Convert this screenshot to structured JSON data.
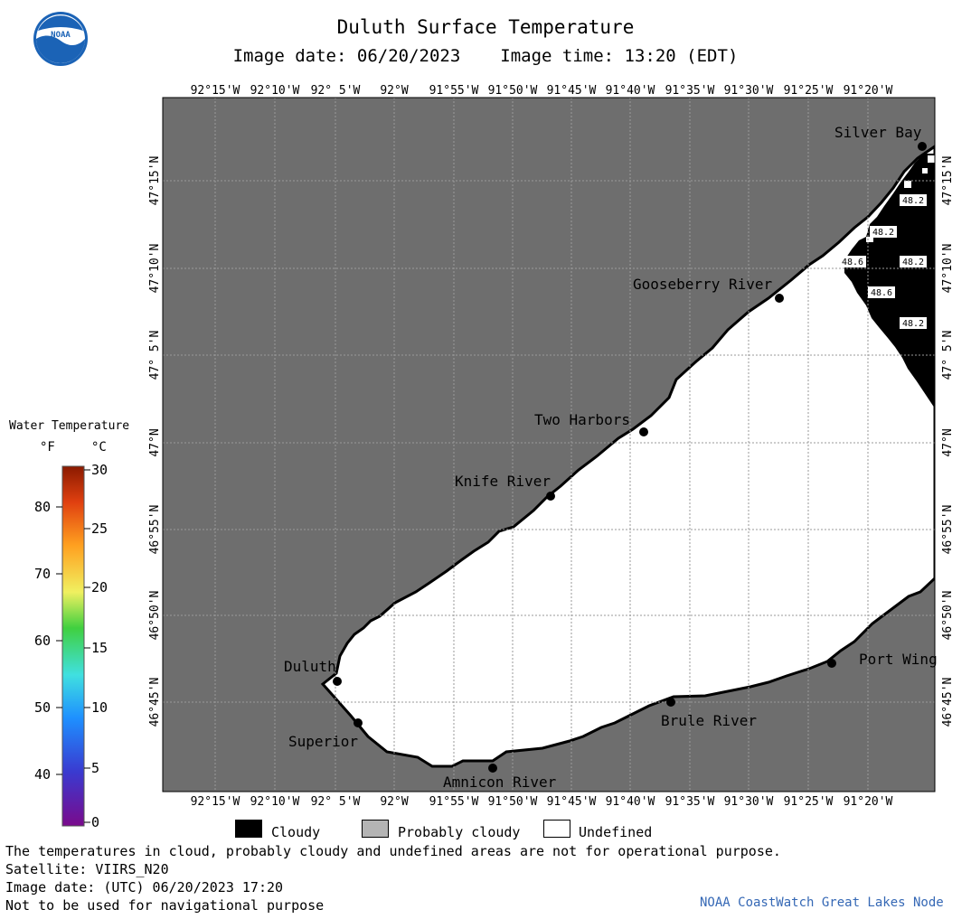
{
  "header": {
    "title": "Duluth Surface Temperature",
    "image_date_label": "Image date: 06/20/2023",
    "image_time_label": "Image time: 13:20 (EDT)"
  },
  "logo": {
    "text": "NOAA",
    "icon": "noaa-logo"
  },
  "map": {
    "lon_labels": [
      "92°15'W",
      "92°10'W",
      "92° 5'W",
      "92°W",
      "91°55'W",
      "91°50'W",
      "91°45'W",
      "91°40'W",
      "91°35'W",
      "91°30'W",
      "91°25'W",
      "91°20'W"
    ],
    "lat_labels": [
      "47°15'N",
      "47°10'N",
      "47° 5'N",
      "47°N",
      "46°55'N",
      "46°50'N",
      "46°45'N"
    ],
    "places": [
      "Silver Bay",
      "Gooseberry River",
      "Two Harbors",
      "Knife River",
      "Duluth",
      "Superior",
      "Amnicon River",
      "Brule River",
      "Port Wing"
    ],
    "temperature_readings": [
      "48.2",
      "48.2",
      "48.6",
      "48.2",
      "48.6",
      "48.2"
    ],
    "colors": {
      "land": "#6e6e6e",
      "undefined": "#ffffff",
      "cloudy": "#000000",
      "grid": "#9a9a9a"
    }
  },
  "legend": {
    "title": "Water Temperature",
    "unit_f": "°F",
    "unit_c": "°C",
    "f_ticks": [
      "80",
      "70",
      "60",
      "50",
      "40"
    ],
    "c_ticks": [
      "30",
      "25",
      "20",
      "15",
      "10",
      "5",
      "0"
    ],
    "key": [
      {
        "label": "Cloudy",
        "color": "#000000"
      },
      {
        "label": "Probably cloudy",
        "color": "#b4b4b4"
      },
      {
        "label": "Undefined",
        "color": "#ffffff"
      }
    ]
  },
  "footer": {
    "disclaimer": "The temperatures in cloud, probably cloudy and undefined areas are not for operational purpose.",
    "satellite": "Satellite: VIIRS_N20",
    "image_date_utc": "Image date: (UTC) 06/20/2023  17:20",
    "navigation": "Not to be used for navigational purpose",
    "credit": "NOAA CoastWatch Great Lakes Node"
  }
}
